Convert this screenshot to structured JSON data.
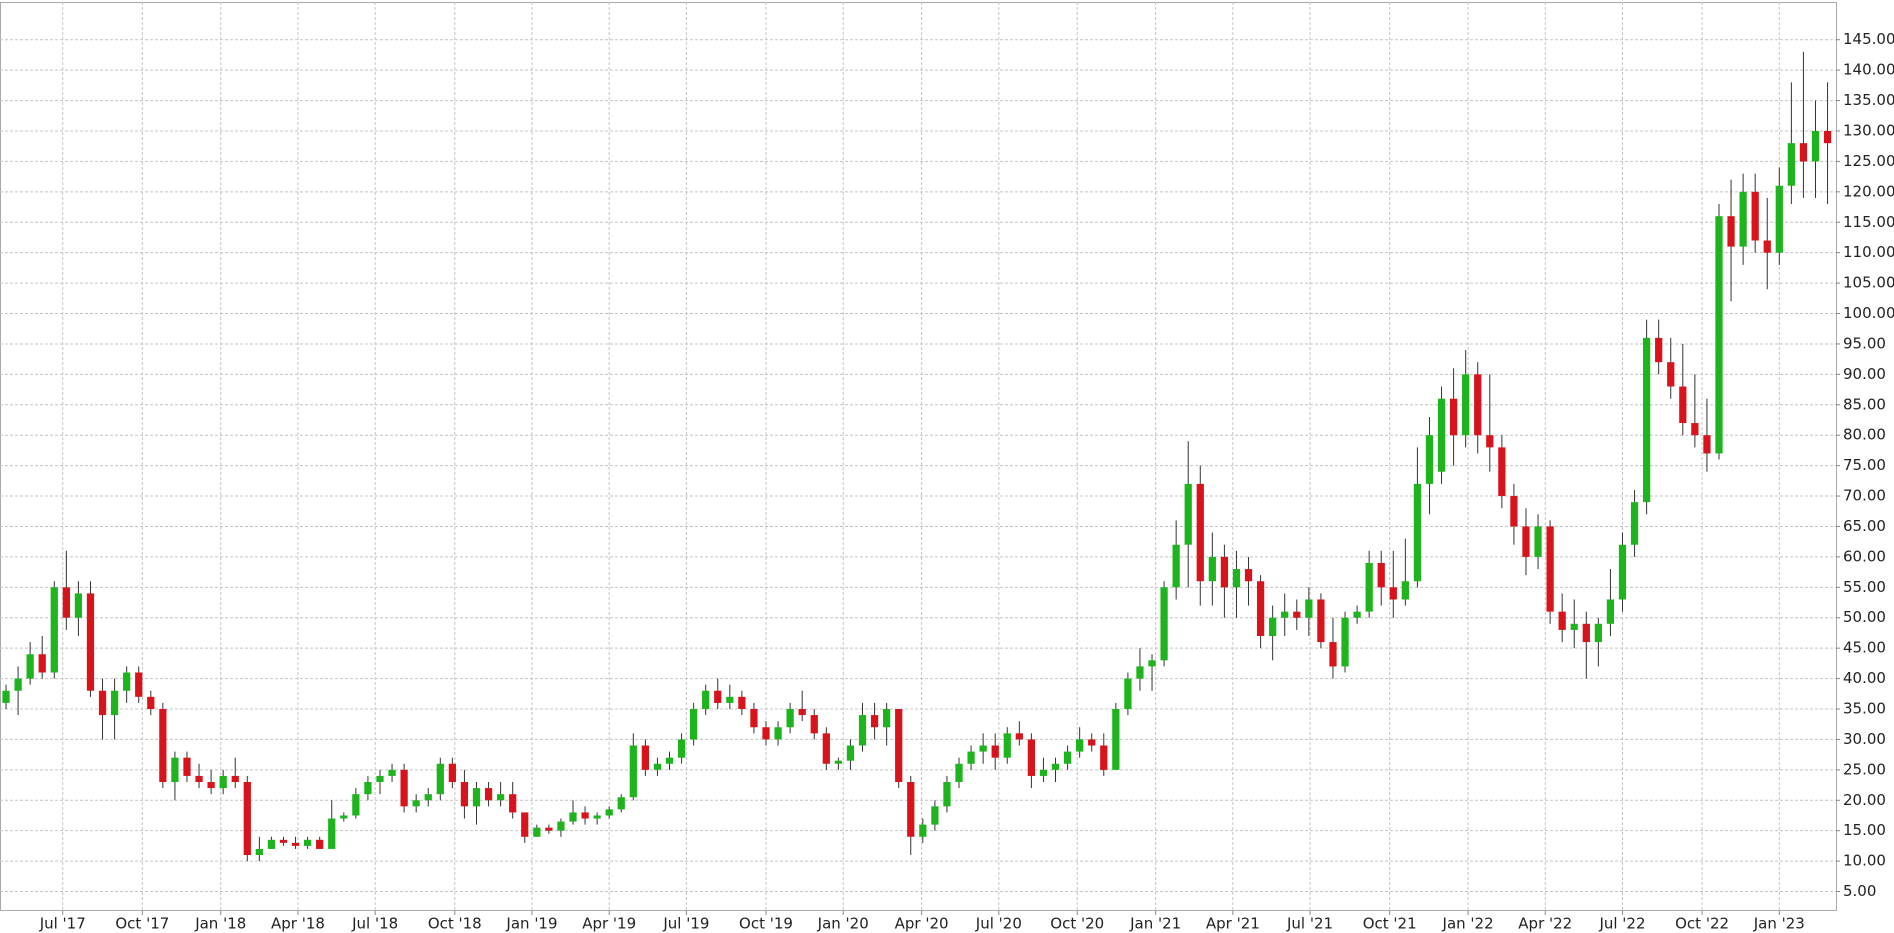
{
  "chart_data": {
    "type": "candlestick",
    "up_color": "#1eb41e",
    "down_color": "#d7141c",
    "grid": true,
    "xlim": [
      -0.5,
      151.7
    ],
    "ylim": [
      1.8,
      151.2
    ],
    "xticks": [
      {
        "value": 4.7,
        "label": "Jul '17"
      },
      {
        "value": 11.3,
        "label": "Oct '17"
      },
      {
        "value": 17.8,
        "label": "Jan '18"
      },
      {
        "value": 24.2,
        "label": "Apr '18"
      },
      {
        "value": 30.6,
        "label": "Jul '18"
      },
      {
        "value": 37.2,
        "label": "Oct '18"
      },
      {
        "value": 43.6,
        "label": "Jan '19"
      },
      {
        "value": 50,
        "label": "Apr '19"
      },
      {
        "value": 56.4,
        "label": "Jul '19"
      },
      {
        "value": 63,
        "label": "Oct '19"
      },
      {
        "value": 69.4,
        "label": "Jan '20"
      },
      {
        "value": 75.9,
        "label": "Apr '20"
      },
      {
        "value": 82.3,
        "label": "Jul '20"
      },
      {
        "value": 88.8,
        "label": "Oct '20"
      },
      {
        "value": 95.3,
        "label": "Jan '21"
      },
      {
        "value": 101.7,
        "label": "Apr '21"
      },
      {
        "value": 108.1,
        "label": "Jul '21"
      },
      {
        "value": 114.7,
        "label": "Oct '21"
      },
      {
        "value": 121.2,
        "label": "Jan '22"
      },
      {
        "value": 127.6,
        "label": "Apr '22"
      },
      {
        "value": 134,
        "label": "Jul '22"
      },
      {
        "value": 140.6,
        "label": "Oct '22"
      },
      {
        "value": 147,
        "label": "Jan '23"
      }
    ],
    "yticks": [
      {
        "value": 5,
        "label": "5.00"
      },
      {
        "value": 10,
        "label": "10.00"
      },
      {
        "value": 15,
        "label": "15.00"
      },
      {
        "value": 20,
        "label": "20.00"
      },
      {
        "value": 25,
        "label": "25.00"
      },
      {
        "value": 30,
        "label": "30.00"
      },
      {
        "value": 35,
        "label": "35.00"
      },
      {
        "value": 40,
        "label": "40.00"
      },
      {
        "value": 45,
        "label": "45.00"
      },
      {
        "value": 50,
        "label": "50.00"
      },
      {
        "value": 55,
        "label": "55.00"
      },
      {
        "value": 60,
        "label": "60.00"
      },
      {
        "value": 65,
        "label": "65.00"
      },
      {
        "value": 70,
        "label": "70.00"
      },
      {
        "value": 75,
        "label": "75.00"
      },
      {
        "value": 80,
        "label": "80.00"
      },
      {
        "value": 85,
        "label": "85.00"
      },
      {
        "value": 90,
        "label": "90.00"
      },
      {
        "value": 95,
        "label": "95.00"
      },
      {
        "value": 100,
        "label": "100.00"
      },
      {
        "value": 105,
        "label": "105.00"
      },
      {
        "value": 110,
        "label": "110.00"
      },
      {
        "value": 115,
        "label": "115.00"
      },
      {
        "value": 120,
        "label": "120.00"
      },
      {
        "value": 125,
        "label": "125.00"
      },
      {
        "value": 130,
        "label": "130.00"
      },
      {
        "value": 135,
        "label": "135.00"
      },
      {
        "value": 140,
        "label": "140.00"
      },
      {
        "value": 145,
        "label": "145.00"
      }
    ],
    "open": [
      36,
      38,
      40,
      44,
      41,
      55,
      50,
      54,
      38,
      34,
      38,
      41,
      37,
      35,
      23,
      27,
      24,
      23,
      22,
      24,
      23,
      11,
      12,
      13.5,
      13,
      12.5,
      13.5,
      12,
      17,
      17.5,
      21,
      23,
      24,
      25,
      19,
      20,
      21,
      26,
      23,
      19,
      22,
      20,
      21,
      18,
      14,
      15.5,
      15,
      16.5,
      18,
      17,
      17.5,
      18.5,
      20.5,
      29,
      25,
      26,
      27,
      30,
      35,
      38,
      36,
      37,
      35,
      32,
      30,
      32,
      35,
      34,
      31,
      26,
      26.5,
      29,
      34,
      32,
      35,
      23,
      14,
      16,
      19,
      23,
      26,
      28,
      29,
      27,
      31,
      30,
      24,
      25,
      26,
      28,
      30,
      29,
      25,
      35,
      40,
      42,
      43,
      55,
      62,
      72,
      56,
      60,
      55,
      58,
      56,
      47,
      50,
      51,
      50,
      53,
      46,
      42,
      50,
      51,
      59,
      55,
      53,
      56,
      72,
      74,
      86,
      80,
      90,
      80,
      78,
      70,
      65,
      60,
      65,
      51,
      48,
      49,
      46,
      49,
      53,
      62,
      69,
      96,
      92,
      88,
      82,
      80,
      77,
      116,
      111,
      120,
      112,
      110,
      121,
      128,
      125,
      130
    ],
    "high": [
      39,
      42,
      46,
      47,
      56,
      61,
      56,
      56,
      40,
      40,
      42,
      42,
      38,
      36,
      28,
      28,
      26,
      25,
      25,
      27,
      24,
      14,
      14,
      14,
      14,
      14,
      14,
      20,
      18,
      22,
      24,
      25,
      26,
      26,
      21,
      22,
      27,
      27,
      25,
      23,
      23,
      23,
      23,
      18,
      16,
      16,
      17,
      20,
      19,
      18,
      19,
      21,
      31,
      30,
      27,
      28,
      31,
      36,
      39,
      40,
      39,
      38,
      36,
      33,
      33,
      36,
      38,
      35,
      32,
      27,
      30,
      36,
      36,
      36,
      35,
      24,
      17,
      20,
      24,
      27,
      29,
      31,
      31,
      32,
      33,
      31,
      27,
      27,
      29,
      32,
      31,
      31,
      36,
      41,
      45,
      44,
      56,
      66,
      79,
      75,
      64,
      62,
      61,
      60,
      57,
      52,
      54,
      53,
      55,
      54,
      50,
      51,
      52,
      61,
      61,
      61,
      63,
      78,
      83,
      88,
      91,
      94,
      92,
      90,
      80,
      72,
      68,
      67,
      66,
      54,
      53,
      51,
      50,
      58,
      64,
      71,
      99,
      99,
      96,
      95,
      90,
      86,
      118,
      122,
      123,
      123,
      119,
      124,
      138,
      143,
      135,
      138
    ],
    "low": [
      35,
      34,
      39,
      40,
      40,
      48,
      47,
      37,
      30,
      30,
      36,
      36,
      34,
      22,
      20,
      23,
      22,
      21,
      21,
      22,
      10,
      10,
      12,
      12.5,
      12,
      12,
      12,
      12,
      16.5,
      17,
      20,
      21,
      23,
      18,
      18,
      19,
      20,
      22,
      17,
      16,
      19,
      19,
      17,
      13,
      14,
      14.5,
      14,
      16,
      16,
      16,
      17,
      18,
      20,
      24,
      24,
      25,
      26,
      29,
      34,
      35,
      35,
      34,
      31,
      29,
      29,
      31,
      33,
      30,
      25,
      25,
      25,
      28,
      30,
      29,
      22,
      11,
      13,
      15,
      18,
      22,
      25,
      26,
      25,
      26,
      29,
      22,
      23,
      23,
      25,
      27,
      28,
      24,
      25,
      34,
      38,
      38,
      42,
      53,
      55,
      52,
      52,
      50,
      50,
      52,
      45,
      43,
      47,
      48,
      47,
      45,
      40,
      41,
      49,
      50,
      52,
      50,
      52,
      55,
      67,
      72,
      75,
      78,
      77,
      74,
      68,
      62,
      57,
      58,
      49,
      46,
      45,
      40,
      42,
      47,
      51,
      60,
      67,
      90,
      86,
      80,
      78,
      74,
      76,
      102,
      108,
      110,
      104,
      108,
      118,
      119,
      119,
      118
    ],
    "close": [
      38,
      40,
      44,
      41,
      55,
      50,
      54,
      38,
      34,
      38,
      41,
      37,
      35,
      23,
      27,
      24,
      23,
      22,
      24,
      23,
      11,
      12,
      13.5,
      13,
      12.5,
      13.5,
      12,
      17,
      17.5,
      21,
      23,
      24,
      25,
      19,
      20,
      21,
      26,
      23,
      19,
      22,
      20,
      21,
      18,
      14,
      15.5,
      15,
      16.5,
      18,
      17,
      17.5,
      18.5,
      20.5,
      29,
      25,
      26,
      27,
      30,
      35,
      38,
      36,
      37,
      35,
      32,
      30,
      32,
      35,
      34,
      31,
      26,
      26.5,
      29,
      34,
      32,
      35,
      23,
      14,
      16,
      19,
      23,
      26,
      28,
      29,
      27,
      31,
      30,
      24,
      25,
      26,
      28,
      30,
      29,
      25,
      35,
      40,
      42,
      43,
      55,
      62,
      72,
      56,
      60,
      55,
      58,
      56,
      47,
      50,
      51,
      50,
      53,
      46,
      42,
      50,
      51,
      59,
      55,
      53,
      56,
      72,
      80,
      86,
      80,
      90,
      80,
      78,
      70,
      65,
      60,
      65,
      51,
      48,
      49,
      46,
      49,
      53,
      62,
      69,
      96,
      92,
      88,
      82,
      80,
      77,
      116,
      111,
      120,
      112,
      110,
      121,
      128,
      125,
      130,
      128
    ]
  }
}
